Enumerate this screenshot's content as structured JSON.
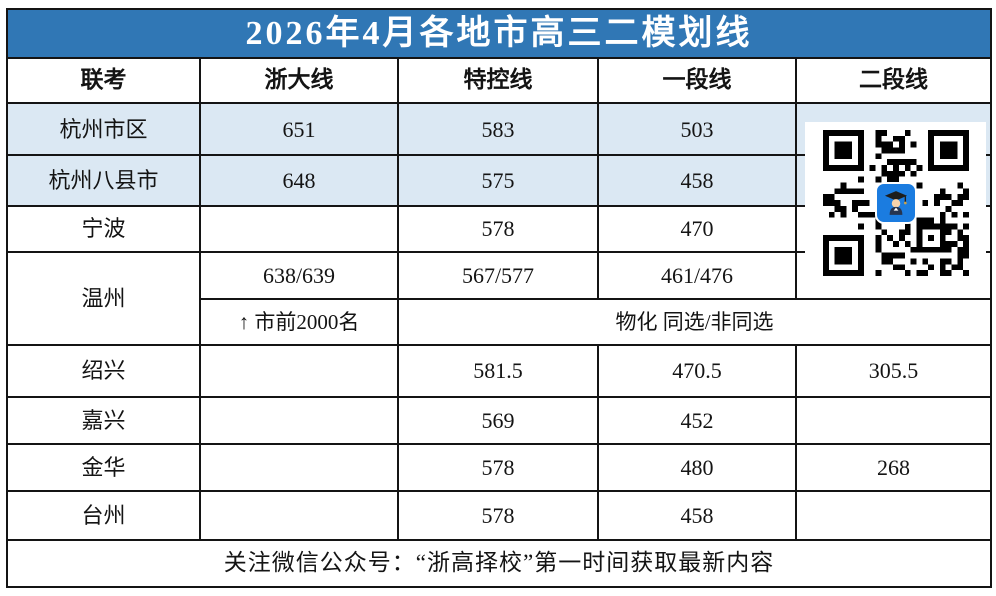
{
  "title": "2026年4月各地市高三二模划线",
  "colors": {
    "title_bg": "#3077b5",
    "title_text": "#ffffff",
    "row_highlight": "#dbe8f3",
    "border": "#141414",
    "qr_logo_bg": "#1b7ce0"
  },
  "table": {
    "headers": [
      "联考",
      "浙大线",
      "特控线",
      "一段线",
      "二段线"
    ],
    "rows": {
      "hangzhou_urban": {
        "label": "杭州市区",
        "zheda": "651",
        "tekong": "583",
        "yiduan": "503",
        "erduan": ""
      },
      "hangzhou_counties": {
        "label": "杭州八县市",
        "zheda": "648",
        "tekong": "575",
        "yiduan": "458",
        "erduan": ""
      },
      "ningbo": {
        "label": "宁波",
        "zheda": "",
        "tekong": "578",
        "yiduan": "470",
        "erduan": ""
      },
      "wenzhou": {
        "label": "温州",
        "zheda": "638/639",
        "tekong": "567/577",
        "yiduan": "461/476",
        "erduan": "",
        "note_left": "↑ 市前2000名",
        "note_right": "物化 同选/非同选"
      },
      "shaoxing": {
        "label": "绍兴",
        "zheda": "",
        "tekong": "581.5",
        "yiduan": "470.5",
        "erduan": "305.5"
      },
      "jiaxing": {
        "label": "嘉兴",
        "zheda": "",
        "tekong": "569",
        "yiduan": "452",
        "erduan": ""
      },
      "jinhua": {
        "label": "金华",
        "zheda": "",
        "tekong": "578",
        "yiduan": "480",
        "erduan": "268"
      },
      "taizhou": {
        "label": "台州",
        "zheda": "",
        "tekong": "578",
        "yiduan": "458",
        "erduan": ""
      }
    },
    "footer": "关注微信公众号：“浙高择校”第一时间获取最新内容"
  },
  "icons": {
    "qr": "wechat-qr-code",
    "qr_logo": "graduate-mascot-icon"
  },
  "chart_data": {
    "type": "table",
    "title": "2026年4月各地市高三二模划线",
    "columns": [
      "联考",
      "浙大线",
      "特控线",
      "一段线",
      "二段线"
    ],
    "rows": [
      [
        "杭州市区",
        "651",
        "583",
        "503",
        ""
      ],
      [
        "杭州八县市",
        "648",
        "575",
        "458",
        ""
      ],
      [
        "宁波",
        "",
        "578",
        "470",
        ""
      ],
      [
        "温州",
        "638/639",
        "567/577",
        "461/476",
        ""
      ],
      [
        "温州(注)",
        "↑ 市前2000名",
        "物化 同选/非同选",
        "",
        ""
      ],
      [
        "绍兴",
        "",
        "581.5",
        "470.5",
        "305.5"
      ],
      [
        "嘉兴",
        "",
        "569",
        "452",
        ""
      ],
      [
        "金华",
        "",
        "578",
        "480",
        "268"
      ],
      [
        "台州",
        "",
        "578",
        "458",
        ""
      ]
    ]
  }
}
